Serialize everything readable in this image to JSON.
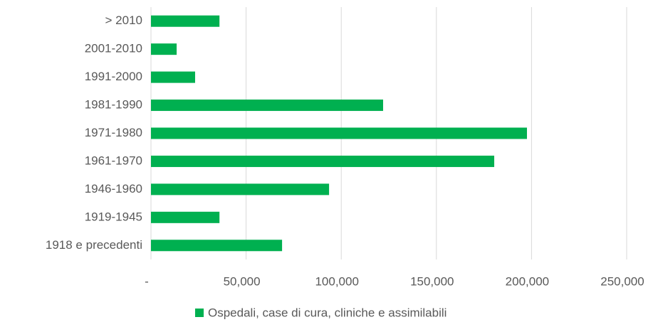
{
  "chart_data": {
    "type": "barh",
    "categories": [
      "> 2010",
      "2001-2010",
      "1991-2000",
      "1981-1990",
      "1971-1980",
      "1961-1970",
      "1946-1960",
      "1919-1945",
      "1918 e precedenti"
    ],
    "series": [
      {
        "name": "Ospedali, case di cura, cliniche e assimilabili",
        "color": "#00b050",
        "values": [
          36000,
          13500,
          23200,
          122000,
          197600,
          180400,
          93600,
          36000,
          68900
        ]
      }
    ],
    "xlim": [
      0,
      250000
    ],
    "xticks": [
      {
        "value": 0,
        "label": "-"
      },
      {
        "value": 50000,
        "label": "50,000"
      },
      {
        "value": 100000,
        "label": "100,000"
      },
      {
        "value": 150000,
        "label": "150,000"
      },
      {
        "value": 200000,
        "label": "200,000"
      },
      {
        "value": 250000,
        "label": "250,000"
      }
    ],
    "grid": true,
    "legend": "bottom"
  }
}
